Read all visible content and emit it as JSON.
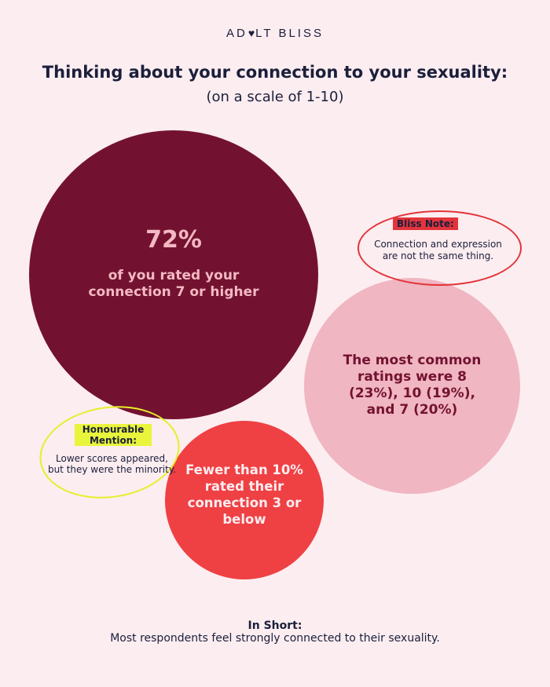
{
  "brand": {
    "left": "AD",
    "heart_icon": "heart-icon",
    "right": "LT BLISS"
  },
  "header": {
    "title": "Thinking about your connection to your sexuality:",
    "subtitle": "(on a scale of 1-10)"
  },
  "circles": {
    "main": {
      "percent": "72%",
      "text": "of you rated your connection 7 or higher"
    },
    "common": {
      "text": "The most common ratings were 8 (23%), 10 (19%), and 7 (20%)"
    },
    "low": {
      "text": "Fewer than 10% rated their connection 3 or below"
    }
  },
  "bliss_note": {
    "label": "Bliss Note:",
    "text": "Connection and expression are not the same thing."
  },
  "honourable_mention": {
    "label": "Honourable Mention:",
    "text": "Lower scores appeared, but they were the minority."
  },
  "summary": {
    "label": "In Short:",
    "text": "Most respondents feel strongly connected to their sexuality."
  },
  "colors": {
    "background": "#fcedf0",
    "maroon": "#731230",
    "pink": "#f0b6c1",
    "red": "#ef4043",
    "yellow": "#e9f53c",
    "navy": "#1b1f3b"
  }
}
